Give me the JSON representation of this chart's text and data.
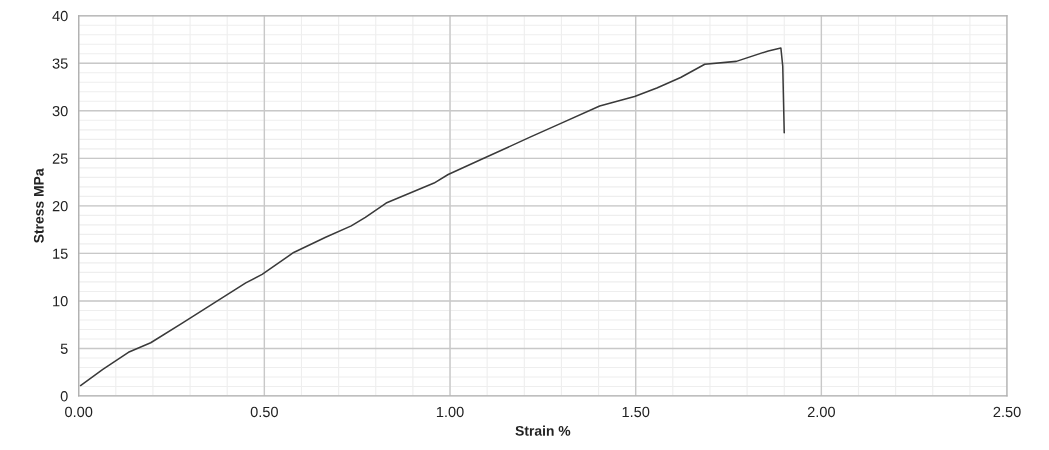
{
  "chart_data": {
    "type": "line",
    "xlabel": "Strain %",
    "ylabel": "Stress MPa",
    "xlim": [
      0,
      2.5
    ],
    "ylim": [
      0,
      40
    ],
    "xticks": [
      {
        "value": 0,
        "label": "0.00"
      },
      {
        "value": 0.5,
        "label": "0.50"
      },
      {
        "value": 1,
        "label": "1.00"
      },
      {
        "value": 1.5,
        "label": "1.50"
      },
      {
        "value": 2,
        "label": "2.00"
      },
      {
        "value": 2.5,
        "label": "2.50"
      }
    ],
    "yticks": [
      0,
      5,
      10,
      15,
      20,
      25,
      30,
      35,
      40
    ],
    "grid": true,
    "marker": "none",
    "line_style": "solid",
    "series": [
      {
        "color": "#3a3a3a",
        "x": [
          0.005,
          0.065,
          0.134,
          0.194,
          0.28,
          0.365,
          0.45,
          0.494,
          0.579,
          0.665,
          0.734,
          0.772,
          0.828,
          0.957,
          0.995,
          1.085,
          1.214,
          1.3,
          1.403,
          1.497,
          1.557,
          1.621,
          1.686,
          1.771,
          1.857,
          1.891,
          1.896,
          1.9
        ],
        "values": [
          1.1,
          2.8,
          4.6,
          5.6,
          7.7,
          9.8,
          11.9,
          12.8,
          15.1,
          16.7,
          17.9,
          18.8,
          20.3,
          22.4,
          23.3,
          24.9,
          27.2,
          28.7,
          30.5,
          31.5,
          32.4,
          33.5,
          34.9,
          35.2,
          36.3,
          36.6,
          34.7,
          27.7
        ]
      }
    ]
  }
}
